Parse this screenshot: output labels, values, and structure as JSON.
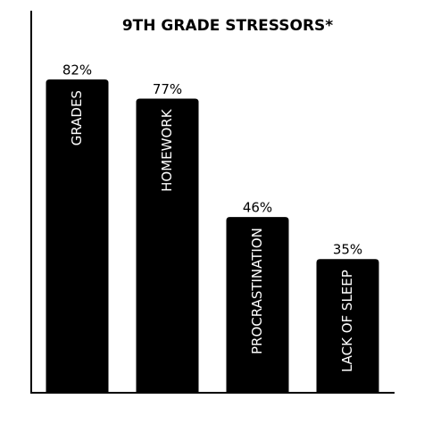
{
  "chart_data": {
    "type": "bar",
    "title": "9TH GRADE STRESSORS*",
    "categories": [
      "GRADES",
      "HOMEWORK",
      "PROCRASTINATION",
      "LACK OF SLEEP"
    ],
    "values": [
      82,
      77,
      46,
      35
    ],
    "value_labels": [
      "82%",
      "77%",
      "46%",
      "35%"
    ],
    "color": "#000000",
    "ylim": [
      0,
      100
    ]
  }
}
